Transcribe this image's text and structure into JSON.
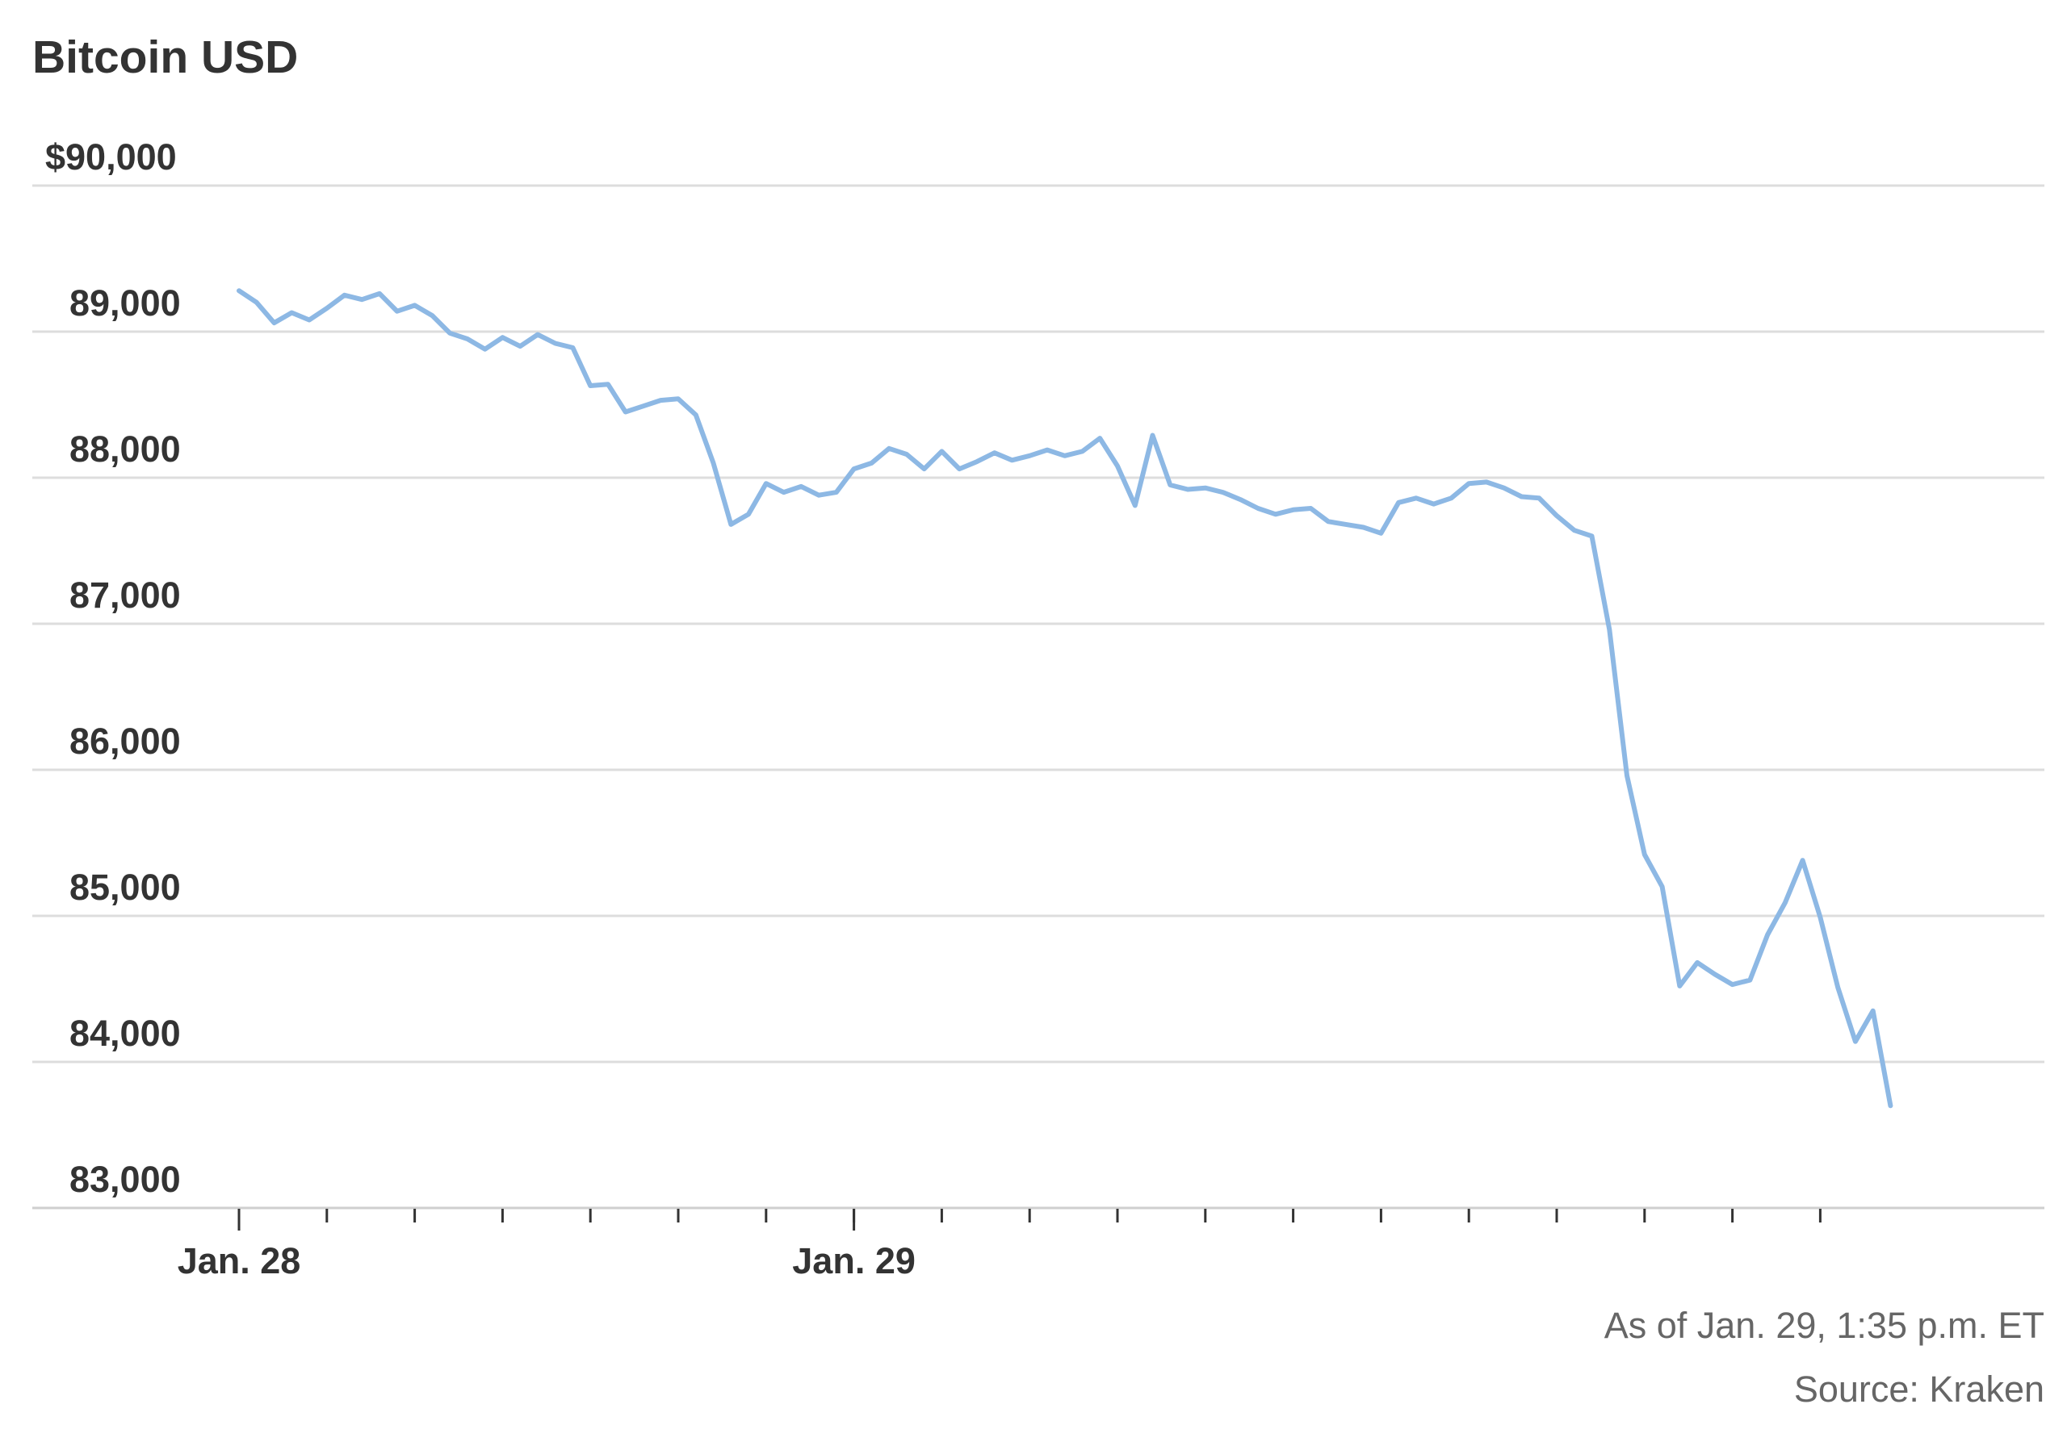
{
  "chart_data": {
    "type": "line",
    "title": "Bitcoin USD",
    "xlabel": "",
    "ylabel": "",
    "ylim": [
      83000,
      90000
    ],
    "yticks": [
      {
        "value": 90000,
        "label": "$90,000"
      },
      {
        "value": 89000,
        "label": "89,000"
      },
      {
        "value": 88000,
        "label": "88,000"
      },
      {
        "value": 87000,
        "label": "87,000"
      },
      {
        "value": 86000,
        "label": "86,000"
      },
      {
        "value": 85000,
        "label": "85,000"
      },
      {
        "value": 84000,
        "label": "84,000"
      },
      {
        "value": 83000,
        "label": "83,000"
      }
    ],
    "x_unit": "hours since Jan. 28, 00:00 ET",
    "xlim": [
      0,
      37.6
    ],
    "x_minor_tick_hours": 2,
    "x_tick_labels": [
      {
        "x": 0,
        "label": "Jan. 28"
      },
      {
        "x": 14,
        "label": "Jan. 29"
      }
    ],
    "grid": true,
    "legend": "none",
    "series": [
      {
        "name": "",
        "color": "#8db8e4",
        "x": [
          0.0,
          0.4,
          0.8,
          1.2,
          1.6,
          2.0,
          2.4,
          2.8,
          3.2,
          3.6,
          4.0,
          4.4,
          4.8,
          5.2,
          5.6,
          6.0,
          6.4,
          6.8,
          7.2,
          7.6,
          8.0,
          8.4,
          8.8,
          9.2,
          9.6,
          10.0,
          10.4,
          10.8,
          11.2,
          11.6,
          12.0,
          12.4,
          12.8,
          13.2,
          13.6,
          14.0,
          14.4,
          14.8,
          15.2,
          15.6,
          16.0,
          16.4,
          16.8,
          17.2,
          17.6,
          18.0,
          18.4,
          18.8,
          19.2,
          19.6,
          20.0,
          20.4,
          20.8,
          21.2,
          21.6,
          22.0,
          22.4,
          22.8,
          23.2,
          23.6,
          24.0,
          24.4,
          24.8,
          25.2,
          25.6,
          26.0,
          26.4,
          26.8,
          27.2,
          27.6,
          28.0,
          28.4,
          28.8,
          29.2,
          29.6,
          30.0,
          30.4,
          30.8,
          31.2,
          31.6,
          32.0,
          32.4,
          32.8,
          33.2,
          33.6,
          34.0,
          34.4,
          34.8,
          35.2,
          35.6,
          36.0,
          36.4,
          36.8,
          37.2,
          37.6
        ],
        "values": [
          89280,
          89200,
          89060,
          89130,
          89080,
          89160,
          89250,
          89220,
          89260,
          89140,
          89180,
          89110,
          88990,
          88950,
          88880,
          88960,
          88900,
          88980,
          88920,
          88890,
          88630,
          88640,
          88450,
          88490,
          88530,
          88540,
          88430,
          88100,
          87680,
          87750,
          87960,
          87900,
          87940,
          87880,
          87900,
          88060,
          88100,
          88200,
          88160,
          88060,
          88180,
          88060,
          88110,
          88170,
          88120,
          88150,
          88190,
          88150,
          88180,
          88270,
          88080,
          87810,
          88290,
          87950,
          87920,
          87930,
          87900,
          87850,
          87790,
          87750,
          87780,
          87790,
          87700,
          87680,
          87660,
          87620,
          87830,
          87860,
          87820,
          87860,
          87960,
          87970,
          87930,
          87870,
          87860,
          87740,
          87640,
          87600,
          86960,
          85960,
          85420,
          85200,
          84520,
          84680,
          84600,
          84530,
          84560,
          84870,
          85090,
          85380,
          84990,
          84510,
          84140,
          84350,
          83700
        ]
      }
    ],
    "annotations": [
      "As of Jan. 29, 1:35 p.m. ET",
      "Source: Kraken"
    ]
  }
}
